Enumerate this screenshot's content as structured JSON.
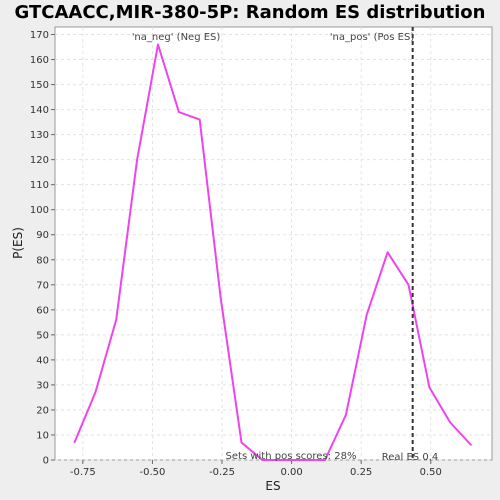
{
  "chart_data": {
    "type": "line",
    "title": "GTCAACC,MIR-380-5P: Random ES distribution",
    "xlabel": "ES",
    "ylabel": "P(ES)",
    "xlim": [
      -0.85,
      0.72
    ],
    "ylim": [
      0,
      173
    ],
    "x_ticks": [
      -0.75,
      -0.5,
      -0.25,
      0.0,
      0.25,
      0.5
    ],
    "x_tick_labels": [
      "-0.75",
      "-0.50",
      "-0.25",
      "0.00",
      "0.25",
      "0.50"
    ],
    "y_ticks": [
      0,
      10,
      20,
      30,
      40,
      50,
      60,
      70,
      80,
      90,
      100,
      110,
      120,
      130,
      140,
      150,
      160,
      170
    ],
    "grid": true,
    "series": [
      {
        "color": "#ee44ee",
        "x": [
          -0.78,
          -0.705,
          -0.63,
          -0.555,
          -0.48,
          -0.405,
          -0.33,
          -0.255,
          -0.18,
          -0.105,
          -0.03,
          0.045,
          0.12,
          0.195,
          0.27,
          0.345,
          0.42,
          0.495,
          0.57,
          0.645
        ],
        "y": [
          7,
          27,
          56,
          120,
          166,
          139,
          136,
          65,
          7,
          0,
          0,
          0,
          0,
          18,
          58,
          83,
          70,
          29,
          15,
          6
        ]
      }
    ],
    "real_es": {
      "value": 0.435,
      "label": "Real ES 0.4",
      "color": "#333333"
    },
    "annotations": {
      "neg_label": "'na_neg' (Neg ES)",
      "neg_color": "#3333cc",
      "pos_label": "'na_pos' (Pos ES)",
      "pos_color": "#dd3333",
      "sets_text": "Sets with pos scores: 28%"
    }
  }
}
